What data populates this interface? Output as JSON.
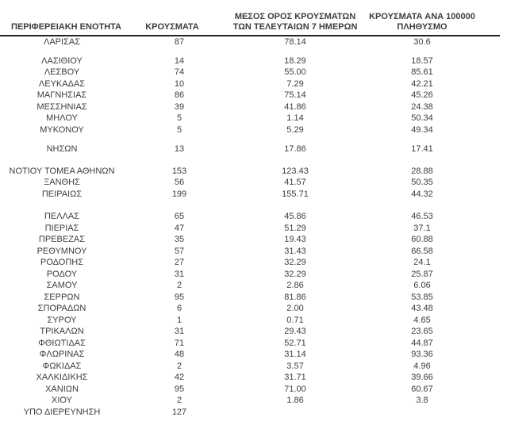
{
  "table": {
    "header": {
      "col1": "ΠΕΡΙΦΕΡΕΙΑΚΗ ΕΝΟΤΗΤΑ",
      "col2": "ΚΡΟΥΣΜΑΤΑ",
      "col3_line1": "ΜΕΣΟΣ ΟΡΟΣ ΚΡΟΥΣΜΑΤΩΝ",
      "col3_line2": "ΤΩΝ ΤΕΛΕΥΤΑΙΩΝ 7 ΗΜΕΡΩΝ",
      "col4_line1": "ΚΡΟΥΣΜΑΤΑ ΑΝΑ 100000",
      "col4_line2": "ΠΛΗΘΥΣΜΟ"
    },
    "rows": [
      {
        "cells": [
          "ΛΑΡΙΣΑΣ",
          "87",
          "78.14",
          "30.6"
        ]
      },
      {
        "spacer": 9
      },
      {
        "cells": [
          "ΛΑΣΙΘΙΟΥ",
          "14",
          "18.29",
          "18.57"
        ]
      },
      {
        "cells": [
          "ΛΕΣΒΟΥ",
          "74",
          "55.00",
          "85.61"
        ]
      },
      {
        "cells": [
          "ΛΕΥΚΑΔΑΣ",
          "10",
          "7.29",
          "42.21"
        ]
      },
      {
        "cells": [
          "ΜΑΓΝΗΣΙΑΣ",
          "86",
          "75.14",
          "45.26"
        ]
      },
      {
        "cells": [
          "ΜΕΣΣΗΝΙΑΣ",
          "39",
          "41.86",
          "24.38"
        ]
      },
      {
        "cells": [
          "ΜΗΛΟΥ",
          "5",
          "1.14",
          "50.34"
        ]
      },
      {
        "cells": [
          "ΜΥΚΟΝΟΥ",
          "5",
          "5.29",
          "49.34"
        ]
      },
      {
        "spacer": 10
      },
      {
        "cells": [
          "ΝΗΣΩΝ",
          "13",
          "17.86",
          "17.41"
        ]
      },
      {
        "spacer": 13
      },
      {
        "cells": [
          "ΝΟΤΙΟΥ ΤΟΜΕΑ ΑΘΗΝΩΝ",
          "153",
          "123.43",
          "28.88"
        ]
      },
      {
        "cells": [
          "ΞΑΝΘΗΣ",
          "56",
          "41.57",
          "50.35"
        ]
      },
      {
        "cells": [
          "ΠΕΙΡΑΙΩΣ",
          "199",
          "155.71",
          "44.32"
        ]
      },
      {
        "spacer": 14
      },
      {
        "cells": [
          "ΠΕΛΛΑΣ",
          "65",
          "45.86",
          "46.53"
        ]
      },
      {
        "cells": [
          "ΠΙΕΡΙΑΣ",
          "47",
          "51.29",
          "37.1"
        ]
      },
      {
        "cells": [
          "ΠΡΕΒΕΖΑΣ",
          "35",
          "19.43",
          "60.88"
        ]
      },
      {
        "cells": [
          "ΡΕΘΥΜΝΟΥ",
          "57",
          "31.43",
          "66.58"
        ]
      },
      {
        "cells": [
          "ΡΟΔΟΠΗΣ",
          "27",
          "32.29",
          "24.1"
        ]
      },
      {
        "cells": [
          "ΡΟΔΟΥ",
          "31",
          "32.29",
          "25.87"
        ]
      },
      {
        "cells": [
          "ΣΑΜΟΥ",
          "2",
          "2.86",
          "6.06"
        ]
      },
      {
        "cells": [
          "ΣΕΡΡΩΝ",
          "95",
          "81.86",
          "53.85"
        ]
      },
      {
        "cells": [
          "ΣΠΟΡΑΔΩΝ",
          "6",
          "2.00",
          "43.48"
        ]
      },
      {
        "cells": [
          "ΣΥΡΟΥ",
          "1",
          "0.71",
          "4.65"
        ]
      },
      {
        "cells": [
          "ΤΡΙΚΑΛΩΝ",
          "31",
          "29.43",
          "23.65"
        ]
      },
      {
        "cells": [
          "ΦΘΙΩΤΙΔΑΣ",
          "71",
          "52.71",
          "44.87"
        ]
      },
      {
        "cells": [
          "ΦΛΩΡΙΝΑΣ",
          "48",
          "31.14",
          "93.36"
        ]
      },
      {
        "cells": [
          "ΦΩΚΙΔΑΣ",
          "2",
          "3.57",
          "4.96"
        ]
      },
      {
        "cells": [
          "ΧΑΛΚΙΔΙΚΗΣ",
          "42",
          "31.71",
          "39.66"
        ]
      },
      {
        "cells": [
          "ΧΑΝΙΩΝ",
          "95",
          "71.00",
          "60.67"
        ]
      },
      {
        "cells": [
          "ΧΙΟΥ",
          "2",
          "1.86",
          "3.8"
        ]
      },
      {
        "cells": [
          "ΥΠΟ ΔΙΕΡΕΥΝΗΣΗ",
          "127",
          "",
          ""
        ]
      }
    ]
  }
}
